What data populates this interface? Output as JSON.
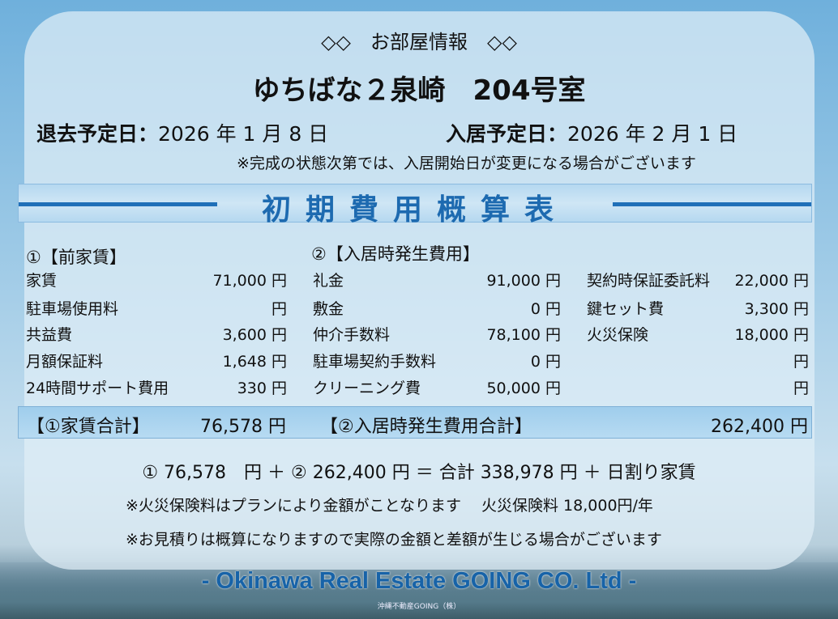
{
  "header": {
    "title": "◇◇　お部屋情報　◇◇",
    "property": "ゆちばな２泉崎　204号室",
    "moveout_label": "退去予定日：",
    "moveout_date": "2026 年 1 月 8 日",
    "movein_label": "入居予定日：",
    "movein_date": "2026 年 2 月 1 日",
    "note": "※完成の状態次第では、入居開始日が変更になる場合がございます"
  },
  "band_title": "初期費用概算表",
  "rent": {
    "heading": "①【前家賃】",
    "items": [
      {
        "label": "家賃",
        "value": "71,000 円"
      },
      {
        "label": "駐車場使用料",
        "value": "円"
      },
      {
        "label": "共益費",
        "value": "3,600 円"
      },
      {
        "label": "月額保証料",
        "value": "1,648 円"
      },
      {
        "label": "24時間サポート費用",
        "value": "330 円"
      }
    ]
  },
  "movein": {
    "heading": "②【入居時発生費用】",
    "items": [
      {
        "label": "礼金",
        "value": "91,000 円"
      },
      {
        "label": "敷金",
        "value": "0 円"
      },
      {
        "label": "仲介手数料",
        "value": "78,100 円"
      },
      {
        "label": "駐車場契約手数料",
        "value": "0 円"
      },
      {
        "label": "クリーニング費",
        "value": "50,000 円"
      }
    ],
    "items2": [
      {
        "label": "契約時保証委託料",
        "value": "22,000 円"
      },
      {
        "label": "鍵セット費",
        "value": "3,300 円"
      },
      {
        "label": "火災保険",
        "value": "18,000 円"
      },
      {
        "label": "",
        "value": "円"
      },
      {
        "label": "",
        "value": "円"
      }
    ]
  },
  "totals": {
    "rent_label": "【①家賃合計】",
    "rent_value": "76,578 円",
    "movein_label": "【②入居時発生費用合計】",
    "movein_value": "262,400 円"
  },
  "summary": "①  76,578　円 ＋ ②  262,400 円 ＝ 合計  338,978  円 ＋ 日割り家賃",
  "notes": [
    "※火災保険料はプランにより金額がことなります　 火災保険料 18,000円/年",
    "※お見積りは概算になりますので実際の金額と差額が生じる場合がございます"
  ],
  "footer": "- Okinawa Real Estate GOING CO. Ltd -",
  "watermark": "沖縄不動産GOING（株）"
}
